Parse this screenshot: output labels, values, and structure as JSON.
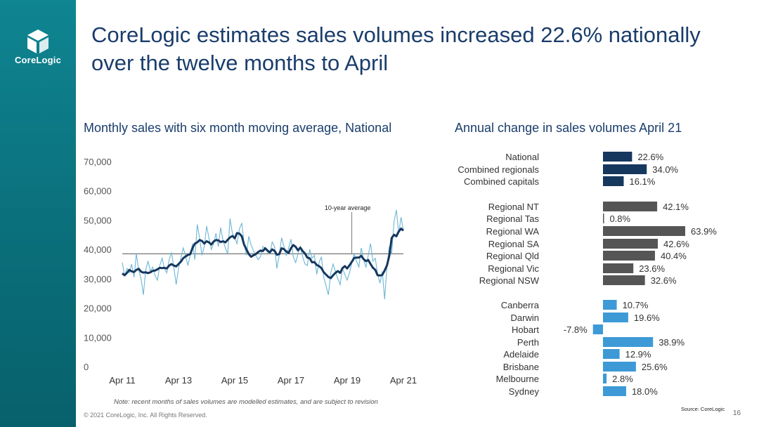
{
  "brand": {
    "logo_text": "CoreLogic",
    "sidebar_color": "#0a7480"
  },
  "slide": {
    "title_line1": "CoreLogic estimates sales volumes increased 22.6% nationally",
    "title_line2": "over the twelve months to April",
    "note": "Note: recent months of sales volumes are modelled estimates, and are subject to revision",
    "copyright": "© 2021 CoreLogic, Inc. All Rights Reserved.",
    "source": "Source: CoreLogic",
    "page_number": "16"
  },
  "chart_data": [
    {
      "type": "line",
      "title": "Monthly sales with six month moving average, National",
      "ylim": [
        0,
        70000
      ],
      "y_ticks": [
        "0",
        "10,000",
        "20,000",
        "30,000",
        "40,000",
        "50,000",
        "60,000",
        "70,000"
      ],
      "y_tick_values": [
        0,
        10000,
        20000,
        30000,
        40000,
        50000,
        60000,
        70000
      ],
      "x_ticks": [
        "Apr 11",
        "Apr 13",
        "Apr 15",
        "Apr 17",
        "Apr 19",
        "Apr 21"
      ],
      "x_tick_months": [
        0,
        24,
        48,
        72,
        96,
        120
      ],
      "reference_line": {
        "label": "10-year average",
        "value": 38500
      },
      "colors": {
        "monthly": "#6db6d6",
        "average": "#16375e",
        "reference": "#555555"
      },
      "series": [
        {
          "values": [
            35500,
            31000,
            33500,
            32000,
            35000,
            30500,
            38500,
            33000,
            30000,
            24500,
            33000,
            36000,
            32500,
            34000,
            31000,
            29500,
            34500,
            37000,
            33500,
            32000,
            36500,
            39000,
            34000,
            28000,
            33500,
            37000,
            40500,
            38000,
            34500,
            38000,
            42000,
            36500,
            48500,
            44000,
            38000,
            41000,
            48000,
            44000,
            40000,
            42000,
            45500,
            41000,
            47500,
            43000,
            40500,
            38500,
            50500,
            45500,
            44000,
            42000,
            47000,
            49000,
            42000,
            38000,
            44500,
            41500,
            39500,
            38000,
            36500,
            37500,
            41000,
            40500,
            39000,
            38500,
            42500,
            41000,
            33500,
            38000,
            44000,
            41000,
            38000,
            40500,
            43500,
            37500,
            35500,
            38500,
            41000,
            37500,
            35000,
            34500,
            40000,
            37000,
            38000,
            31500,
            35500,
            37500,
            30500,
            27500,
            24500,
            32000,
            35000,
            32500,
            30000,
            28000,
            33500,
            31500,
            29500,
            32000,
            35500,
            38500,
            36000,
            34000,
            40500,
            36500,
            34000,
            38000,
            42000,
            36000,
            37000,
            31500,
            28500,
            32500,
            23000,
            34500,
            41000,
            38500,
            49500,
            53500,
            45500,
            51000,
            46500
          ]
        },
        {
          "values": [
            31800,
            31200,
            32000,
            33000,
            32500,
            32300,
            33000,
            33400,
            32400,
            32100,
            32200,
            31900,
            32200,
            32700,
            32800,
            33200,
            33700,
            33600,
            33700,
            33500,
            34500,
            35000,
            34500,
            34200,
            35000,
            35800,
            37000,
            37600,
            38100,
            38400,
            40500,
            42000,
            42400,
            43200,
            42900,
            42000,
            42800,
            42400,
            41700,
            42700,
            43200,
            43100,
            42500,
            42800,
            42400,
            43300,
            44100,
            44600,
            43800,
            45600,
            45400,
            44500,
            41700,
            40000,
            38400,
            37500,
            38000,
            38400,
            39100,
            39600,
            39400,
            40400,
            39600,
            39000,
            40000,
            39500,
            38200,
            38400,
            40400,
            40100,
            39300,
            38800,
            40400,
            41500,
            40900,
            39700,
            40600,
            39400,
            38600,
            37200,
            37000,
            35600,
            35700,
            34700,
            34300,
            33600,
            32200,
            31400,
            30600,
            30200,
            31200,
            32000,
            32600,
            32000,
            33600,
            34300,
            33500,
            34600,
            35800,
            37100,
            37200,
            37200,
            37800,
            36700,
            36000,
            36400,
            35000,
            33700,
            33000,
            31200,
            31100,
            31300,
            32800,
            34600,
            37900,
            43900,
            45000,
            44500,
            46100,
            47100,
            46400
          ]
        }
      ]
    },
    {
      "type": "bar",
      "orientation": "horizontal",
      "title": "Annual change in sales volumes April 21",
      "categories": [
        "National",
        "Combined regionals",
        "Combined capitals",
        "Regional NT",
        "Regional Tas",
        "Regional WA",
        "Regional SA",
        "Regional Qld",
        "Regional Vic",
        "Regional NSW",
        "Canberra",
        "Darwin",
        "Hobart",
        "Perth",
        "Adelaide",
        "Brisbane",
        "Melbourne",
        "Sydney"
      ],
      "values": [
        22.6,
        34.0,
        16.1,
        42.1,
        0.8,
        63.9,
        42.6,
        40.4,
        23.6,
        32.6,
        10.7,
        19.6,
        -7.8,
        38.9,
        12.9,
        25.6,
        2.8,
        18.0
      ],
      "value_labels": [
        "22.6%",
        "34.0%",
        "16.1%",
        "42.1%",
        "0.8%",
        "63.9%",
        "42.6%",
        "40.4%",
        "23.6%",
        "32.6%",
        "10.7%",
        "19.6%",
        "-7.8%",
        "38.9%",
        "12.9%",
        "25.6%",
        "2.8%",
        "18.0%"
      ],
      "groups": [
        0,
        0,
        0,
        1,
        1,
        1,
        1,
        1,
        1,
        1,
        2,
        2,
        2,
        2,
        2,
        2,
        2,
        2
      ],
      "group_colors": [
        "#16375e",
        "#555555",
        "#3d9ad6"
      ]
    }
  ]
}
